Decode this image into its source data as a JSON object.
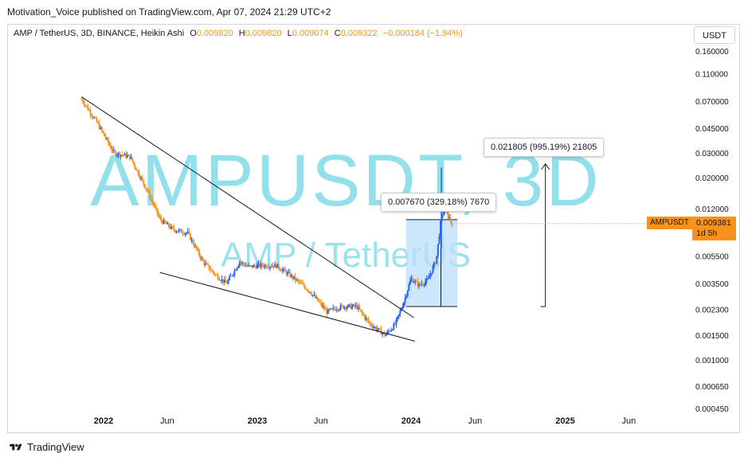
{
  "header": {
    "published_line": "Motivation_Voice published on TradingView.com, Apr 07, 2024 21:29 UTC+2"
  },
  "legend": {
    "symbol": "AMP / TetherUS, 3D, BINANCE, Heikin Ashi",
    "o_label": "O",
    "o_value": "0.009820",
    "h_label": "H",
    "h_value": "0.009820",
    "l_label": "L",
    "l_value": "0.009074",
    "c_label": "C",
    "c_value": "0.009322",
    "change": "−0.000184 (−1.94%)"
  },
  "currency_button": "USDT",
  "watermark": {
    "main": "AMPUSDT, 3D",
    "sub": "AMP / TetherUS"
  },
  "price_tag": {
    "symbol": "AMPUSDT",
    "price": "0.009381",
    "countdown": "1d 5h"
  },
  "measurements": {
    "box_label": "0.007670 (329.18%) 7670",
    "arrow_label": "0.021805 (995.19%) 21805"
  },
  "footer": {
    "brand": "TradingView"
  },
  "colors": {
    "up": "#2962ff",
    "down": "#f7931a",
    "watermark": "#48ccdc",
    "measure_fill": "#bbdefb",
    "trendline": "#131722"
  },
  "chart_data": {
    "type": "candlestick",
    "scale": "log",
    "y_axis": {
      "ticks": [
        0.16,
        0.11,
        0.07,
        0.045,
        0.03,
        0.02,
        0.012,
        0.0055,
        0.0035,
        0.0023,
        0.0015,
        0.001,
        0.00065,
        0.00045
      ],
      "tick_labels": [
        "0.160000",
        "0.110000",
        "0.070000",
        "0.045000",
        "0.030000",
        "0.020000",
        "0.012000",
        "0.005500",
        "0.003500",
        "0.002300",
        "0.001500",
        "0.001000",
        "0.000650",
        "0.000450"
      ]
    },
    "x_axis": {
      "ticks": [
        "2022-01-01",
        "2022-06-01",
        "2023-01-01",
        "2023-06-01",
        "2024-01-01",
        "2024-06-01",
        "2025-01-01",
        "2025-06-01"
      ],
      "tick_labels": [
        "2022",
        "Jun",
        "2023",
        "Jun",
        "2024",
        "Jun",
        "2025",
        "Jun"
      ]
    },
    "price_path": [
      [
        "2021-11-10",
        0.072
      ],
      [
        "2021-12-15",
        0.05
      ],
      [
        "2022-01-25",
        0.03
      ],
      [
        "2022-03-05",
        0.028
      ],
      [
        "2022-04-15",
        0.016
      ],
      [
        "2022-05-15",
        0.01
      ],
      [
        "2022-06-15",
        0.0085
      ],
      [
        "2022-07-20",
        0.008
      ],
      [
        "2022-08-25",
        0.005
      ],
      [
        "2022-09-25",
        0.004
      ],
      [
        "2022-10-20",
        0.0035
      ],
      [
        "2022-11-20",
        0.005
      ],
      [
        "2022-12-10",
        0.0046
      ],
      [
        "2023-01-05",
        0.0047
      ],
      [
        "2023-02-15",
        0.0047
      ],
      [
        "2023-03-20",
        0.004
      ],
      [
        "2023-05-05",
        0.0031
      ],
      [
        "2023-06-15",
        0.0022
      ],
      [
        "2023-07-20",
        0.0024
      ],
      [
        "2023-08-25",
        0.0024
      ],
      [
        "2023-09-25",
        0.0018
      ],
      [
        "2023-11-01",
        0.0015
      ],
      [
        "2023-11-25",
        0.0018
      ],
      [
        "2023-12-15",
        0.0026
      ],
      [
        "2024-01-01",
        0.0038
      ],
      [
        "2024-01-20",
        0.0034
      ],
      [
        "2024-02-10",
        0.0037
      ],
      [
        "2024-03-01",
        0.0052
      ],
      [
        "2024-03-12",
        0.01
      ],
      [
        "2024-03-20",
        0.012
      ],
      [
        "2024-04-07",
        0.0093
      ]
    ],
    "trendlines": {
      "upper": {
        "from": [
          "2021-11-10",
          0.075
        ],
        "to": [
          "2024-01-08",
          0.002
        ]
      },
      "lower": {
        "from": [
          "2022-05-15",
          0.0042
        ],
        "to": [
          "2024-01-10",
          0.00136
        ]
      }
    },
    "measure_box": {
      "from_date": "2023-12-20",
      "to_date": "2024-04-20",
      "low": 0.0024,
      "high": 0.01
    },
    "measure_arrow": {
      "date": "2024-11-15",
      "low": 0.0024,
      "high": 0.025
    }
  }
}
